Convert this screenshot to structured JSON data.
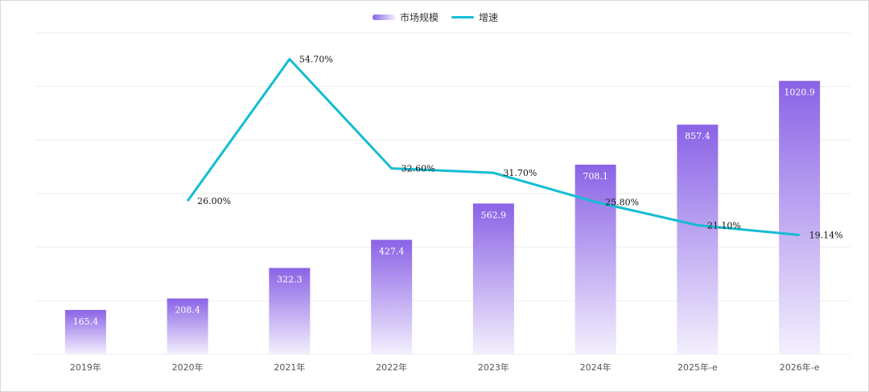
{
  "chart_data": {
    "type": "bar",
    "categories": [
      "2019年",
      "2020年",
      "2021年",
      "2022年",
      "2023年",
      "2024年",
      "2025年-e",
      "2026年-e"
    ],
    "series": [
      {
        "name": "市场规模",
        "type": "bar",
        "values": [
          165.4,
          208.4,
          322.3,
          427.4,
          562.9,
          708.1,
          857.4,
          1020.9
        ],
        "labels": [
          "165.4",
          "208.4",
          "322.3",
          "427.4",
          "562.9",
          "708.1",
          "857.4",
          "1020.9"
        ]
      },
      {
        "name": "增速",
        "type": "line",
        "values": [
          null,
          26.0,
          54.7,
          32.6,
          31.7,
          25.8,
          21.1,
          19.14
        ],
        "labels": [
          "",
          "26.00%",
          "54.70%",
          "32.60%",
          "31.70%",
          "25.80%",
          "21.10%",
          "19.14%"
        ]
      }
    ],
    "bar_axis_range": [
      0,
      1200
    ],
    "line_axis_range": [
      -5,
      60
    ],
    "grid": true,
    "legend_position": "top-center",
    "colors": {
      "bar_top": "#8a63e6",
      "bar_bottom": "#f3effd",
      "line": "#15bcd3",
      "grid": "#eeeeee"
    }
  }
}
